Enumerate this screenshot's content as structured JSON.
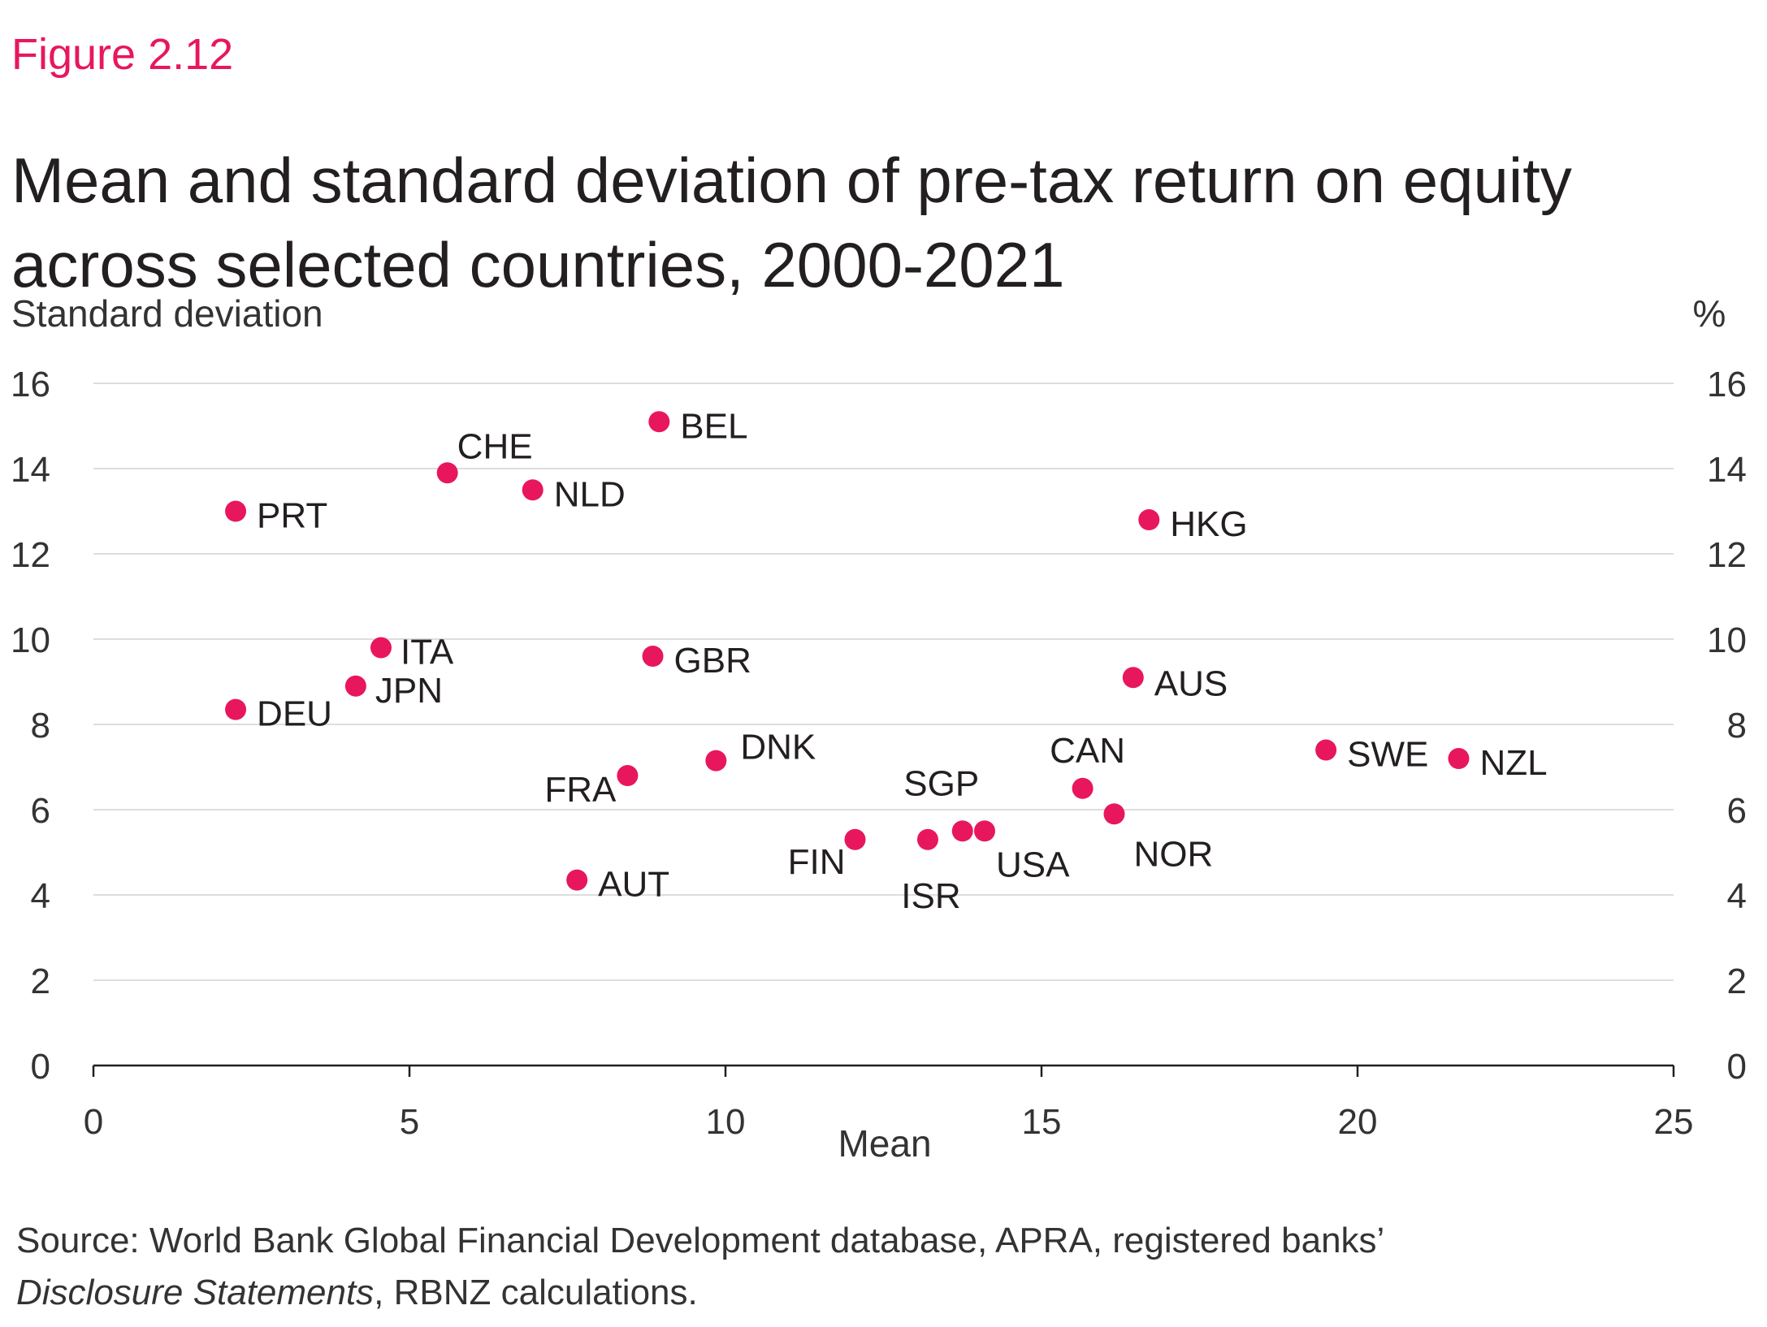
{
  "figure_label": "Figure 2.12",
  "title": "Mean and standard deviation of pre-tax return on equity across selected countries, 2000-2021",
  "source": {
    "line1": "Source: World Bank Global Financial Development database, APRA, registered banks’",
    "italic": "Disclosure Statements",
    "rest": ", RBNZ calculations."
  },
  "colors": {
    "marker": "#e8175d",
    "accent": "#e8175d",
    "grid": "#dddddd",
    "axis": "#231f20"
  },
  "chart_data": {
    "type": "scatter",
    "xlabel": "Mean",
    "ylabel": "Standard deviation",
    "ylabel_right": "%",
    "xlim": [
      0,
      25
    ],
    "ylim": [
      0,
      16
    ],
    "xticks": [
      "0",
      "5",
      "10",
      "15",
      "20",
      "25"
    ],
    "yticks": [
      "0",
      "2",
      "4",
      "6",
      "8",
      "10",
      "12",
      "14",
      "16"
    ],
    "grid": "horizontal",
    "points": [
      {
        "label": "PRT",
        "x": 2.25,
        "y": 13.0
      },
      {
        "label": "DEU",
        "x": 2.25,
        "y": 8.35
      },
      {
        "label": "JPN",
        "x": 4.15,
        "y": 8.9
      },
      {
        "label": "ITA",
        "x": 4.55,
        "y": 9.8
      },
      {
        "label": "CHE",
        "x": 5.6,
        "y": 13.9
      },
      {
        "label": "NLD",
        "x": 6.95,
        "y": 13.5
      },
      {
        "label": "AUT",
        "x": 7.65,
        "y": 4.35
      },
      {
        "label": "FRA",
        "x": 8.45,
        "y": 6.8
      },
      {
        "label": "GBR",
        "x": 8.85,
        "y": 9.6
      },
      {
        "label": "BEL",
        "x": 8.95,
        "y": 15.1
      },
      {
        "label": "DNK",
        "x": 9.85,
        "y": 7.15
      },
      {
        "label": "FIN",
        "x": 12.05,
        "y": 5.3
      },
      {
        "label": "ISR",
        "x": 13.2,
        "y": 5.3
      },
      {
        "label": "SGP",
        "x": 13.75,
        "y": 5.5
      },
      {
        "label": "USA",
        "x": 14.1,
        "y": 5.5
      },
      {
        "label": "CAN",
        "x": 15.65,
        "y": 6.5
      },
      {
        "label": "NOR",
        "x": 16.15,
        "y": 5.9
      },
      {
        "label": "AUS",
        "x": 16.45,
        "y": 9.1
      },
      {
        "label": "HKG",
        "x": 16.7,
        "y": 12.8
      },
      {
        "label": "SWE",
        "x": 19.5,
        "y": 7.4
      },
      {
        "label": "NZL",
        "x": 21.6,
        "y": 7.2
      }
    ]
  }
}
